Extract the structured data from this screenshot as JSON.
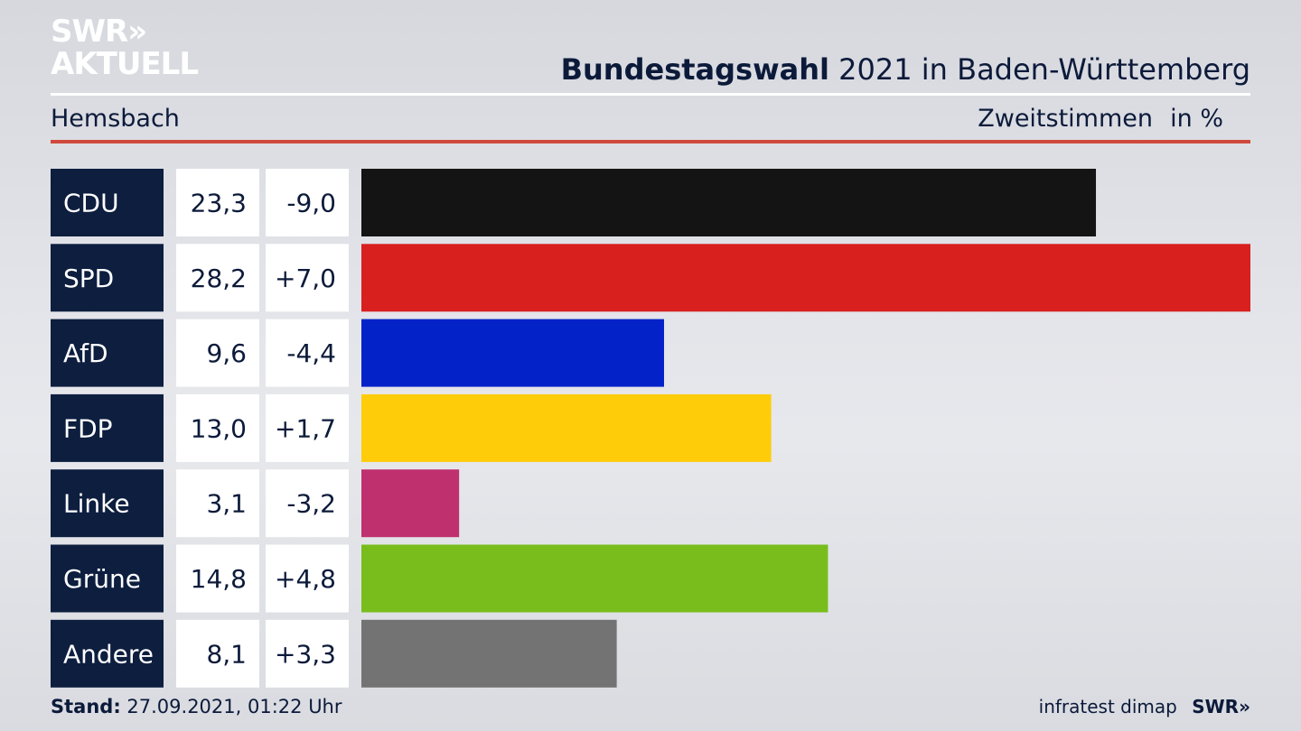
{
  "brand": {
    "line1": "SWR»",
    "line2": "AKTUELL"
  },
  "header": {
    "title_bold": "Bundestagswahl",
    "title_rest": "2021 in Baden-Württemberg",
    "place": "Hemsbach",
    "vote_type": "Zweitstimmen",
    "unit": "in %"
  },
  "footer": {
    "stand_label": "Stand:",
    "stand_value": "27.09.2021, 01:22 Uhr",
    "source": "infratest dimap",
    "swr_logo": "SWR»"
  },
  "colors": {
    "label_bg": "#0d1e3f",
    "cell_bg": "#ffffff",
    "accent_rule": "#d0483d"
  },
  "chart_data": {
    "type": "bar",
    "orientation": "horizontal",
    "title": "Bundestagswahl 2021 in Baden-Württemberg",
    "subtitle": "Hemsbach – Zweitstimmen in %",
    "categories": [
      "CDU",
      "SPD",
      "AfD",
      "FDP",
      "Linke",
      "Grüne",
      "Andere"
    ],
    "values": [
      23.3,
      28.2,
      9.6,
      13.0,
      3.1,
      14.8,
      8.1
    ],
    "value_labels": [
      "23,3",
      "28,2",
      "9,6",
      "13,0",
      "3,1",
      "14,8",
      "8,1"
    ],
    "changes": [
      "-9,0",
      "+7,0",
      "-4,4",
      "+1,7",
      "-3,2",
      "+4,8",
      "+3,3"
    ],
    "bar_colors": [
      "#141414",
      "#d8201f",
      "#0322c8",
      "#ffcc0a",
      "#bf306f",
      "#78bd1c",
      "#737373"
    ],
    "xlim": [
      0,
      28.2
    ]
  }
}
